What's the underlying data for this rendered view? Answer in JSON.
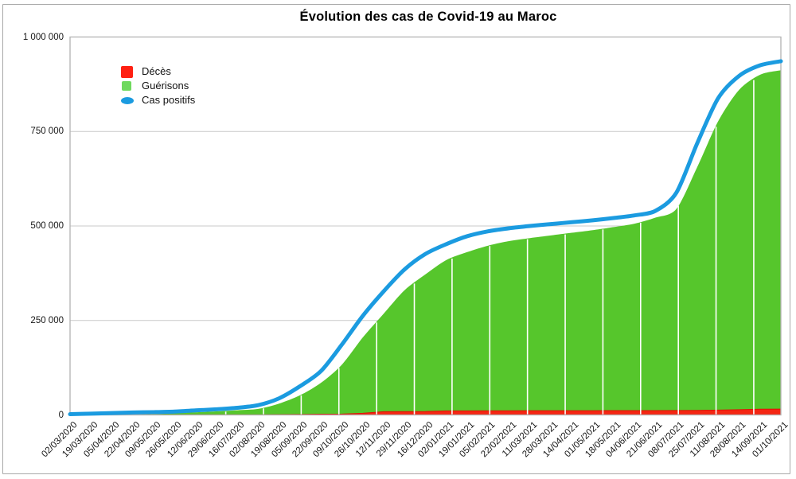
{
  "title": "Évolution des cas de Covid-19 au Maroc",
  "legend": {
    "position": "top-left",
    "items": [
      {
        "label": "Décès",
        "marker": "square",
        "color": "#ff2012"
      },
      {
        "label": "Guérisons",
        "marker": "square",
        "color": "#6fd95e"
      },
      {
        "label": "Cas positifs",
        "marker": "diamond",
        "color": "#1b9be0"
      }
    ]
  },
  "y_axis": {
    "tick_labels": [
      "0",
      "250 000",
      "500 000",
      "750 000",
      "1 000 000"
    ]
  },
  "chart_data": {
    "type": "area",
    "title": "Évolution des cas de Covid-19 au Maroc",
    "categories": [
      "02/03/2020",
      "19/03/2020",
      "05/04/2020",
      "22/04/2020",
      "09/05/2020",
      "26/05/2020",
      "12/06/2020",
      "29/06/2020",
      "16/07/2020",
      "02/08/2020",
      "19/08/2020",
      "05/09/2020",
      "22/09/2020",
      "09/10/2020",
      "26/10/2020",
      "12/11/2020",
      "29/11/2020",
      "16/12/2020",
      "02/01/2021",
      "19/01/2021",
      "05/02/2021",
      "22/02/2021",
      "11/03/2021",
      "28/03/2021",
      "14/04/2021",
      "01/05/2021",
      "18/05/2021",
      "04/06/2021",
      "21/06/2021",
      "08/07/2021",
      "25/07/2021",
      "11/08/2021",
      "28/08/2021",
      "14/09/2021",
      "01/10/2021"
    ],
    "series": [
      {
        "name": "Décès",
        "render": "area",
        "smooth": false,
        "color": "#f42613",
        "edge_color": "#dd1405",
        "values": [
          0,
          50,
          100,
          150,
          190,
          200,
          210,
          230,
          260,
          360,
          700,
          1300,
          2000,
          2500,
          4500,
          8800,
          8900,
          9200,
          10800,
          10900,
          11000,
          11000,
          11200,
          11200,
          11300,
          11400,
          11500,
          11600,
          11700,
          11800,
          12000,
          13000,
          14000,
          15200,
          15500
        ]
      },
      {
        "name": "Guérisons",
        "render": "area",
        "smooth": true,
        "color": "#56c62c",
        "edge_color": "#56c62c",
        "values": [
          0,
          100,
          300,
          900,
          2000,
          4500,
          7000,
          9500,
          12500,
          16000,
          30000,
          52000,
          85000,
          133000,
          205000,
          268000,
          330000,
          372000,
          410000,
          431000,
          448000,
          460000,
          468000,
          475000,
          482000,
          489000,
          497000,
          506000,
          522000,
          545000,
          656000,
          777000,
          860000,
          900000,
          912000
        ]
      },
      {
        "name": "Cas positifs",
        "render": "line",
        "smooth": true,
        "color": "#1b9be0",
        "values": [
          2000,
          3500,
          5000,
          6500,
          7500,
          9000,
          12000,
          15000,
          19000,
          26000,
          44000,
          76000,
          116000,
          186000,
          262000,
          327000,
          385000,
          426000,
          452000,
          473000,
          486000,
          494000,
          500000,
          505000,
          510000,
          515000,
          521000,
          528000,
          540000,
          588000,
          719000,
          838000,
          897000,
          925000,
          936000
        ]
      }
    ],
    "ylim": [
      0,
      1000000
    ],
    "y_ticks": [
      0,
      250000,
      500000,
      750000,
      1000000
    ],
    "xlabel": "",
    "ylabel": "",
    "grid": "horizontal",
    "legend_position": "top-left",
    "frame_color": "#b2b2b2",
    "grid_color": "#c9c9c9"
  }
}
